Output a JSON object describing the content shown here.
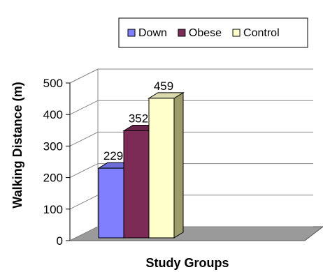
{
  "chart_data": {
    "type": "bar",
    "style": "3d-clustered",
    "categories": [
      ""
    ],
    "series": [
      {
        "name": "Down",
        "values": [
          229
        ],
        "color": "#8080ff"
      },
      {
        "name": "Obese",
        "values": [
          352
        ],
        "color": "#7b2b56"
      },
      {
        "name": "Control",
        "values": [
          459
        ],
        "color": "#ffffcc"
      }
    ],
    "ylim": [
      0,
      500
    ],
    "yticks": [
      0,
      100,
      200,
      300,
      400,
      500
    ],
    "xlabel": "Study Groups",
    "ylabel": "Walking Distance (m)",
    "grid": true,
    "legend_position": "top-right",
    "data_labels": true
  }
}
